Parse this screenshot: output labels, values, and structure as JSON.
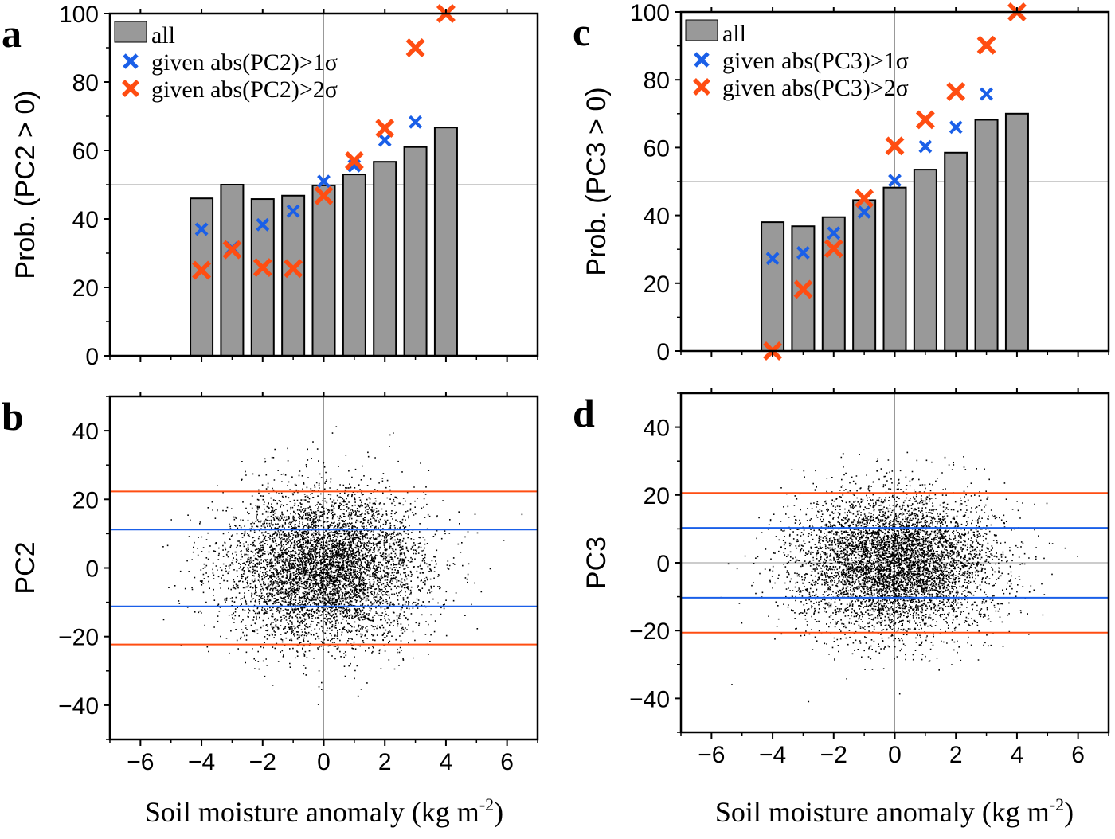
{
  "figure": {
    "xlabel": "Soil moisture anomaly (kg m",
    "xlabel_sup": "-2",
    "xlabel_end": ")"
  },
  "colors": {
    "bar": "#999999",
    "blue": "#1a5fe8",
    "orange": "#ff4d12",
    "ref_line": "#999999"
  },
  "chart_data": [
    {
      "panel": "a",
      "type": "bar",
      "ylabel": "Prob. (PC2 > 0)",
      "xlim": [
        -7,
        7
      ],
      "ylim": [
        0,
        100
      ],
      "xticks": [
        -6,
        -4,
        -2,
        0,
        2,
        4,
        6
      ],
      "xtick_labels": [
        "−6",
        "−4",
        "−2",
        "0",
        "2",
        "4",
        "6"
      ],
      "yticks": [
        0,
        20,
        40,
        60,
        80,
        100
      ],
      "ref_hline": 50,
      "ref_vline": 0,
      "legend": {
        "position": "top-left",
        "entries": [
          {
            "label": "all",
            "marker": "bar"
          },
          {
            "label": "given abs(PC2)>1σ",
            "marker": "blue-x"
          },
          {
            "label": "given abs(PC2)>2σ",
            "marker": "orange-x"
          }
        ]
      },
      "categories": [
        -4,
        -3,
        -2,
        -1,
        0,
        1,
        2,
        3,
        4
      ],
      "series": [
        {
          "name": "all",
          "kind": "bar",
          "values": [
            46,
            50,
            45.8,
            46.8,
            49.8,
            53,
            56.7,
            61,
            66.7
          ]
        },
        {
          "name": "given abs(PC2)>1σ",
          "kind": "x",
          "color": "blue",
          "values": [
            37,
            31.5,
            38.3,
            42.3,
            51,
            55.5,
            63,
            68.3,
            100
          ]
        },
        {
          "name": "given abs(PC2)>2σ",
          "kind": "x",
          "color": "orange",
          "values": [
            25,
            31,
            25.8,
            25.5,
            46.8,
            57,
            66.5,
            90,
            100
          ]
        }
      ]
    },
    {
      "panel": "b",
      "type": "scatter",
      "ylabel": "PC2",
      "xlim": [
        -7,
        7
      ],
      "ylim": [
        -50,
        50
      ],
      "xticks": [
        -6,
        -4,
        -2,
        0,
        2,
        4,
        6
      ],
      "xtick_labels": [
        "−6",
        "−4",
        "−2",
        "0",
        "2",
        "4",
        "6"
      ],
      "yticks": [
        -40,
        -20,
        0,
        20,
        40
      ],
      "ytick_labels": [
        "−40",
        "−20",
        "0",
        "20",
        "40"
      ],
      "ref_hline": 0,
      "ref_vline": 0,
      "hlines": [
        {
          "y": 22.3,
          "color": "orange"
        },
        {
          "y": 11.2,
          "color": "blue"
        },
        {
          "y": -11.2,
          "color": "blue"
        },
        {
          "y": -22.3,
          "color": "orange"
        }
      ],
      "scatter": {
        "n_points": 6000,
        "x_mean": 0,
        "x_sd": 1.6,
        "y_mean": 0,
        "y_sd": 11.2
      }
    },
    {
      "panel": "c",
      "type": "bar",
      "ylabel": "Prob. (PC3 > 0)",
      "xlim": [
        -7,
        7
      ],
      "ylim": [
        0,
        100
      ],
      "xticks": [
        -6,
        -4,
        -2,
        0,
        2,
        4,
        6
      ],
      "xtick_labels": [
        "−6",
        "−4",
        "−2",
        "0",
        "2",
        "4",
        "6"
      ],
      "yticks": [
        0,
        20,
        40,
        60,
        80,
        100
      ],
      "ref_hline": 50,
      "ref_vline": 0,
      "legend": {
        "position": "top-left",
        "entries": [
          {
            "label": "all",
            "marker": "bar"
          },
          {
            "label": "given abs(PC3)>1σ",
            "marker": "blue-x"
          },
          {
            "label": "given abs(PC3)>2σ",
            "marker": "orange-x"
          }
        ]
      },
      "categories": [
        -4,
        -3,
        -2,
        -1,
        0,
        1,
        2,
        3,
        4
      ],
      "series": [
        {
          "name": "all",
          "kind": "bar",
          "values": [
            38,
            36.8,
            39.5,
            44.5,
            48.2,
            53.5,
            58.5,
            68.2,
            70
          ]
        },
        {
          "name": "given abs(PC3)>1σ",
          "kind": "x",
          "color": "blue",
          "values": [
            27.3,
            29,
            34.8,
            41,
            50.3,
            60.3,
            66,
            75.8,
            100
          ]
        },
        {
          "name": "given abs(PC3)>2σ",
          "kind": "x",
          "color": "orange",
          "values": [
            0,
            18.2,
            30.2,
            45,
            60.5,
            68.2,
            76.5,
            90.2,
            100
          ]
        }
      ]
    },
    {
      "panel": "d",
      "type": "scatter",
      "ylabel": "PC3",
      "xlim": [
        -7,
        7
      ],
      "ylim": [
        -50,
        50
      ],
      "xticks": [
        -6,
        -4,
        -2,
        0,
        2,
        4,
        6
      ],
      "xtick_labels": [
        "−6",
        "−4",
        "−2",
        "0",
        "2",
        "4",
        "6"
      ],
      "yticks": [
        -40,
        -20,
        0,
        20,
        40
      ],
      "ytick_labels": [
        "−40",
        "−20",
        "0",
        "20",
        "40"
      ],
      "ref_hline": 0,
      "ref_vline": 0,
      "hlines": [
        {
          "y": 20.6,
          "color": "orange"
        },
        {
          "y": 10.3,
          "color": "blue"
        },
        {
          "y": -10.3,
          "color": "blue"
        },
        {
          "y": -20.6,
          "color": "orange"
        }
      ],
      "scatter": {
        "n_points": 6000,
        "x_mean": 0,
        "x_sd": 1.6,
        "y_mean": 0,
        "y_sd": 10.3
      }
    }
  ]
}
